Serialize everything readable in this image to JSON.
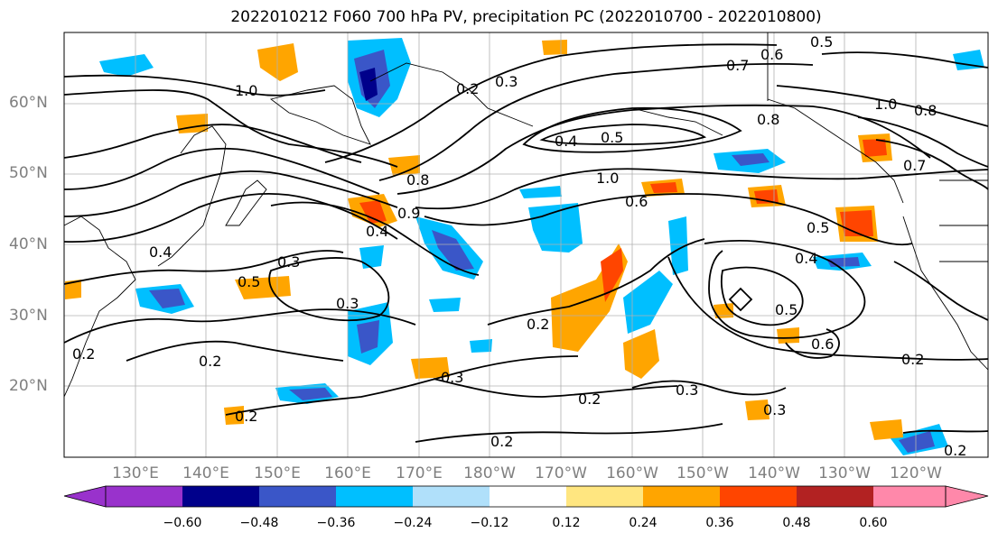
{
  "title": "2022010212 F060 700 hPa PV, precipitation PC (2022010700 - 2022010800)",
  "lat_labels": [
    "60°N",
    "50°N",
    "40°N",
    "30°N",
    "20°N"
  ],
  "lon_labels": [
    "130°E",
    "140°E",
    "150°E",
    "160°E",
    "170°E",
    "180°W",
    "170°W",
    "160°W",
    "150°W",
    "140°W",
    "130°W",
    "120°W"
  ],
  "contour_labels": [
    "1.0",
    "0.7",
    "0.6",
    "0.5",
    "0.2",
    "0.3",
    "0.4",
    "0.5",
    "1.0",
    "0.6",
    "0.8",
    "0.9",
    "0.8",
    "0.4",
    "0.3",
    "0.4",
    "0.3",
    "0.5",
    "0.2",
    "0.2",
    "0.2",
    "0.3",
    "0.2",
    "0.4",
    "0.5",
    "0.6",
    "0.3",
    "0.2",
    "0.3",
    "0.2",
    "0.2",
    "0.2",
    "0.5",
    "0.7",
    "0.8",
    "1.0"
  ],
  "colorbar": {
    "colors": [
      "#9932cc",
      "#00008b",
      "#3a56c8",
      "#00bfff",
      "#b0e0fa",
      "#ffffff",
      "#ffe680",
      "#ffa500",
      "#ff4500",
      "#b22222",
      "#ff88aa"
    ],
    "ticks": [
      "−0.60",
      "−0.48",
      "−0.36",
      "−0.24",
      "−0.12",
      "0.12",
      "0.24",
      "0.36",
      "0.48",
      "0.60"
    ]
  },
  "colors": {
    "blue_strong": "#3a56c8",
    "blue": "#00bfff",
    "orange": "#ffa500",
    "red": "#ff4500"
  }
}
